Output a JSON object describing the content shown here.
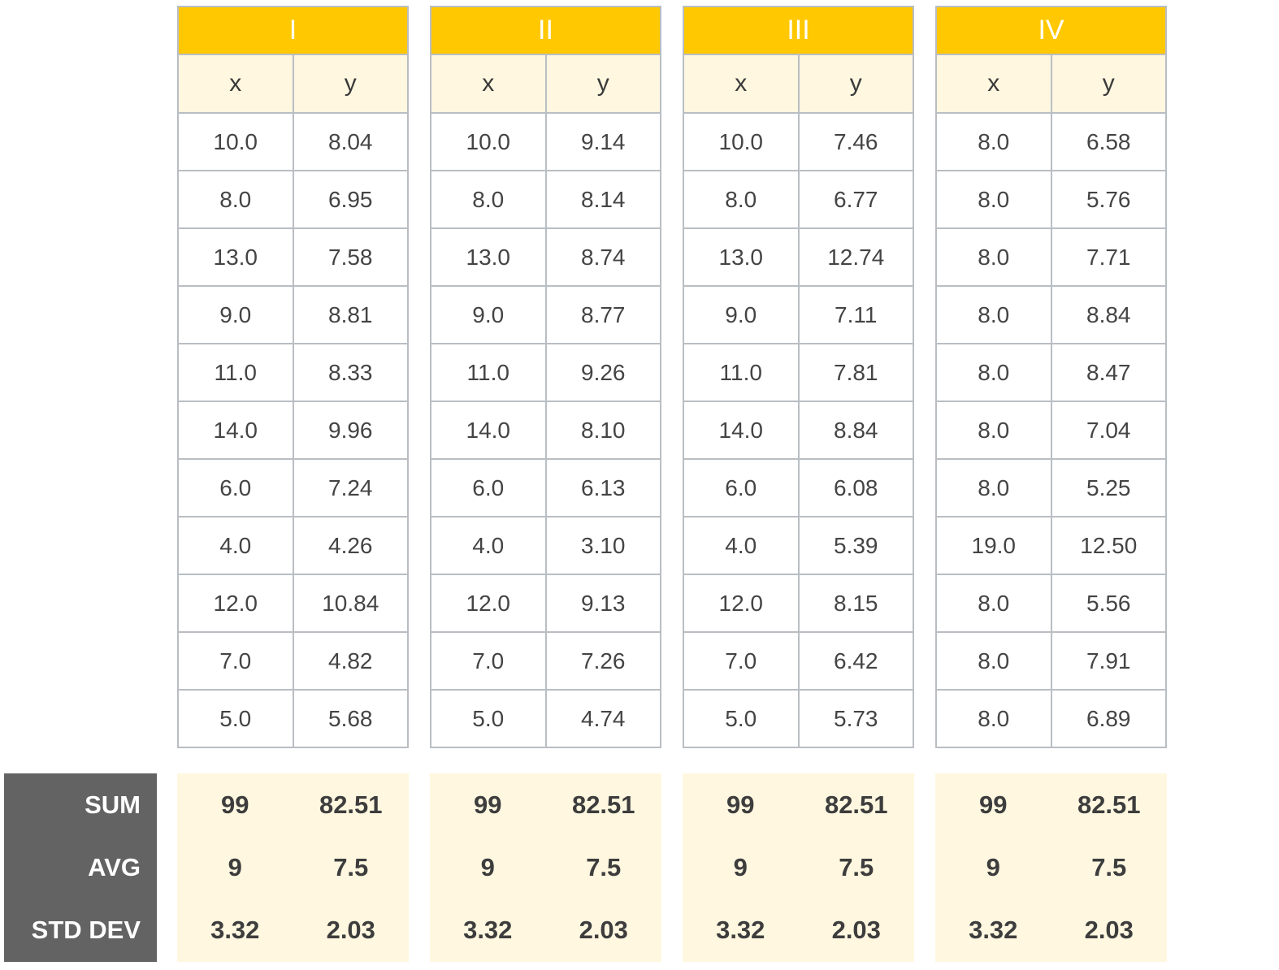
{
  "datasets": [
    {
      "title": "I",
      "col_x": "x",
      "col_y": "y",
      "rows": [
        [
          "10.0",
          "8.04"
        ],
        [
          "8.0",
          "6.95"
        ],
        [
          "13.0",
          "7.58"
        ],
        [
          "9.0",
          "8.81"
        ],
        [
          "11.0",
          "8.33"
        ],
        [
          "14.0",
          "9.96"
        ],
        [
          "6.0",
          "7.24"
        ],
        [
          "4.0",
          "4.26"
        ],
        [
          "12.0",
          "10.84"
        ],
        [
          "7.0",
          "4.82"
        ],
        [
          "5.0",
          "5.68"
        ]
      ],
      "stats": {
        "sum": [
          "99",
          "82.51"
        ],
        "avg": [
          "9",
          "7.5"
        ],
        "std": [
          "3.32",
          "2.03"
        ]
      }
    },
    {
      "title": "II",
      "col_x": "x",
      "col_y": "y",
      "rows": [
        [
          "10.0",
          "9.14"
        ],
        [
          "8.0",
          "8.14"
        ],
        [
          "13.0",
          "8.74"
        ],
        [
          "9.0",
          "8.77"
        ],
        [
          "11.0",
          "9.26"
        ],
        [
          "14.0",
          "8.10"
        ],
        [
          "6.0",
          "6.13"
        ],
        [
          "4.0",
          "3.10"
        ],
        [
          "12.0",
          "9.13"
        ],
        [
          "7.0",
          "7.26"
        ],
        [
          "5.0",
          "4.74"
        ]
      ],
      "stats": {
        "sum": [
          "99",
          "82.51"
        ],
        "avg": [
          "9",
          "7.5"
        ],
        "std": [
          "3.32",
          "2.03"
        ]
      }
    },
    {
      "title": "III",
      "col_x": "x",
      "col_y": "y",
      "rows": [
        [
          "10.0",
          "7.46"
        ],
        [
          "8.0",
          "6.77"
        ],
        [
          "13.0",
          "12.74"
        ],
        [
          "9.0",
          "7.11"
        ],
        [
          "11.0",
          "7.81"
        ],
        [
          "14.0",
          "8.84"
        ],
        [
          "6.0",
          "6.08"
        ],
        [
          "4.0",
          "5.39"
        ],
        [
          "12.0",
          "8.15"
        ],
        [
          "7.0",
          "6.42"
        ],
        [
          "5.0",
          "5.73"
        ]
      ],
      "stats": {
        "sum": [
          "99",
          "82.51"
        ],
        "avg": [
          "9",
          "7.5"
        ],
        "std": [
          "3.32",
          "2.03"
        ]
      }
    },
    {
      "title": "IV",
      "col_x": "x",
      "col_y": "y",
      "rows": [
        [
          "8.0",
          "6.58"
        ],
        [
          "8.0",
          "5.76"
        ],
        [
          "8.0",
          "7.71"
        ],
        [
          "8.0",
          "8.84"
        ],
        [
          "8.0",
          "8.47"
        ],
        [
          "8.0",
          "7.04"
        ],
        [
          "8.0",
          "5.25"
        ],
        [
          "19.0",
          "12.50"
        ],
        [
          "8.0",
          "5.56"
        ],
        [
          "8.0",
          "7.91"
        ],
        [
          "8.0",
          "6.89"
        ]
      ],
      "stats": {
        "sum": [
          "99",
          "82.51"
        ],
        "avg": [
          "9",
          "7.5"
        ],
        "std": [
          "3.32",
          "2.03"
        ]
      }
    }
  ],
  "stat_labels": {
    "sum": "SUM",
    "avg": "AVG",
    "std": "STD DEV"
  },
  "colors": {
    "header": "#ffc800",
    "subheader": "#fff7e0",
    "label_bg": "#636363",
    "border": "#b9bec3"
  }
}
